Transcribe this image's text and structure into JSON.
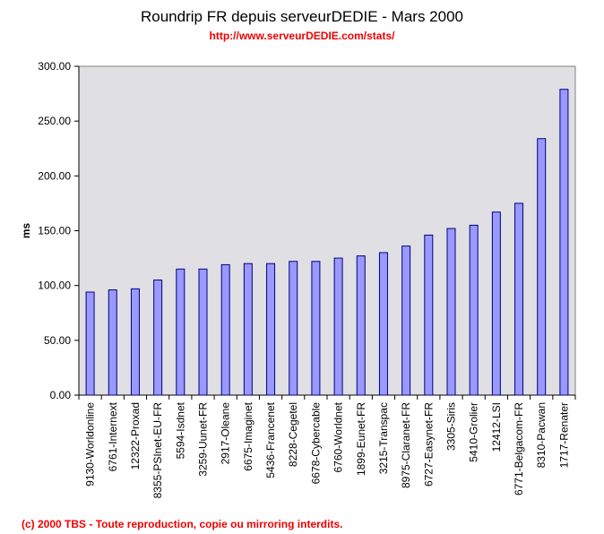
{
  "chart_data": {
    "type": "bar",
    "title": "Roundrip FR depuis serveurDEDIE - Mars 2000",
    "subtitle": "http://www.serveurDEDIE.com/stats/",
    "xlabel": "",
    "ylabel": "ms",
    "ylim": [
      0,
      300
    ],
    "yticks": [
      "0.00",
      "50.00",
      "100.00",
      "150.00",
      "200.00",
      "250.00",
      "300.00"
    ],
    "ytick_values": [
      0,
      50,
      100,
      150,
      200,
      250,
      300
    ],
    "grid": false,
    "categories": [
      "9130-Worldonline",
      "6761-Internext",
      "12322-Proxad",
      "8355-PSInet-EU-FR",
      "5594-Isdnet",
      "3259-Uunet-FR",
      "2917-Oleane",
      "6675-Imaginet",
      "5436-Francenet",
      "8228-Cegetel",
      "6678-Cybercable",
      "6760-Worldnet",
      "1899-Eunet-FR",
      "3215-Transpac",
      "8975-Claranet-FR",
      "6727-Easynet-FR",
      "3305-Siris",
      "5410-Grolier",
      "12412-LSI",
      "6771-Belgacom-FR",
      "8310-Pacwan",
      "1717-Renater"
    ],
    "values": [
      94,
      96,
      97,
      105,
      115,
      115,
      119,
      120,
      120,
      122,
      122,
      125,
      127,
      130,
      136,
      146,
      152,
      155,
      167,
      175,
      234,
      279
    ],
    "colors": {
      "bar": "#9999ff",
      "bar_edge": "#000080",
      "plot_bg": "#e0dfe3"
    }
  },
  "footer": "(c) 2000 TBS - Toute reproduction, copie ou mirroring interdits."
}
